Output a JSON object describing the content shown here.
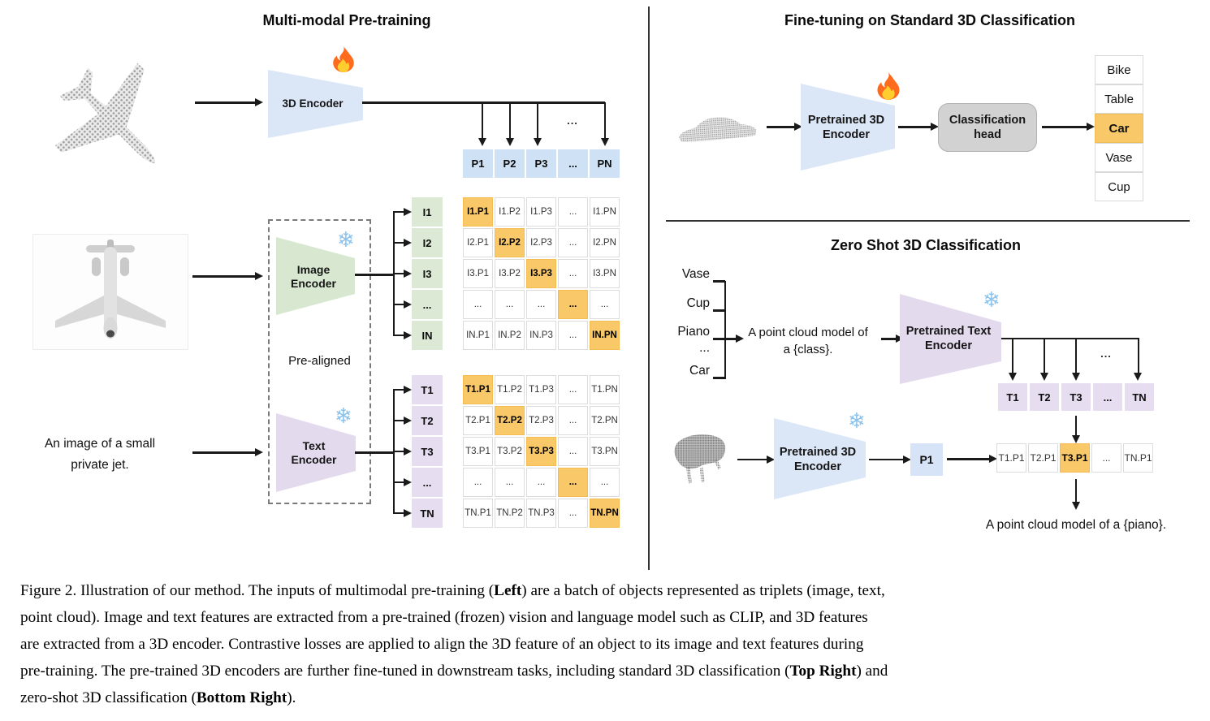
{
  "left_panel": {
    "title": "Multi-modal Pre-training",
    "encoder_3d_label": "3D Encoder",
    "image_encoder": {
      "line1": "Image",
      "line2": "Encoder"
    },
    "text_encoder": {
      "line1": "Text",
      "line2": "Encoder"
    },
    "pre_aligned_label": "Pre-aligned",
    "image_caption_input": {
      "line1": "An image of a small",
      "line2": "private jet."
    },
    "p_fan_ellipsis": "...",
    "p_row": [
      "P1",
      "P2",
      "P3",
      "...",
      "PN"
    ],
    "i_column": [
      "I1",
      "I2",
      "I3",
      "...",
      "IN"
    ],
    "t_column": [
      "T1",
      "T2",
      "T3",
      "...",
      "TN"
    ],
    "i_matrix": [
      [
        "I1.P1",
        "I1.P2",
        "I1.P3",
        "...",
        "I1.PN"
      ],
      [
        "I2.P1",
        "I2.P2",
        "I2.P3",
        "...",
        "I2.PN"
      ],
      [
        "I3.P1",
        "I3.P2",
        "I3.P3",
        "...",
        "I3.PN"
      ],
      [
        "...",
        "...",
        "...",
        "...",
        "..."
      ],
      [
        "IN.P1",
        "IN.P2",
        "IN.P3",
        "...",
        "IN.PN"
      ]
    ],
    "t_matrix": [
      [
        "T1.P1",
        "T1.P2",
        "T1.P3",
        "...",
        "T1.PN"
      ],
      [
        "T2.P1",
        "T2.P2",
        "T2.P3",
        "...",
        "T2.PN"
      ],
      [
        "T3.P1",
        "T3.P2",
        "T3.P3",
        "...",
        "T3.PN"
      ],
      [
        "...",
        "...",
        "...",
        "...",
        "..."
      ],
      [
        "TN.P1",
        "TN.P2",
        "TN.P3",
        "...",
        "TN.PN"
      ]
    ]
  },
  "top_right_panel": {
    "title": "Fine-tuning on Standard 3D Classification",
    "encoder": {
      "line1": "Pretrained 3D",
      "line2": "Encoder"
    },
    "classification_head": {
      "line1": "Classification",
      "line2": "head"
    },
    "classes": [
      {
        "label": "Bike"
      },
      {
        "label": "Table"
      },
      {
        "label": "Car",
        "highlight": true
      },
      {
        "label": "Vase"
      },
      {
        "label": "Cup"
      }
    ]
  },
  "bottom_right_panel": {
    "title": "Zero Shot 3D Classification",
    "prompt_classes": [
      "Vase",
      "Cup",
      "Piano",
      "...",
      "Car"
    ],
    "prompt": {
      "line1": "A point cloud model of",
      "line2": "a {class}."
    },
    "text_encoder": {
      "line1": "Pretrained Text",
      "line2": "Encoder"
    },
    "fan_ellipsis": "...",
    "t_row": [
      "T1",
      "T2",
      "T3",
      "...",
      "TN"
    ],
    "encoder_3d": {
      "line1": "Pretrained 3D",
      "line2": "Encoder"
    },
    "p1_label": "P1",
    "similarity_row": [
      {
        "label": "T1.P1"
      },
      {
        "label": "T2.P1"
      },
      {
        "label": "T3.P1",
        "highlight": true
      },
      {
        "label": "..."
      },
      {
        "label": "TN.P1"
      }
    ],
    "output_text": "A point cloud model of a {piano}."
  },
  "caption": {
    "label": "Figure 2.",
    "lines": [
      [
        {
          "t": "Figure 2. Illustration of our method. The inputs of multimodal pre-training ("
        },
        {
          "t": "Left",
          "b": true
        },
        {
          "t": ") are a batch of objects represented as triplets (image, text,"
        }
      ],
      [
        {
          "t": "point cloud). Image and text features are extracted from a pre-trained (frozen) vision and language model such as CLIP, and 3D features"
        }
      ],
      [
        {
          "t": "are extracted from a 3D encoder. Contrastive losses are applied to align the 3D feature of an object to its image and text features during"
        }
      ],
      [
        {
          "t": "pre-training. The pre-trained 3D encoders are further fine-tuned in downstream tasks, including standard 3D classification ("
        },
        {
          "t": "Top Right",
          "b": true
        },
        {
          "t": ") and"
        }
      ],
      [
        {
          "t": "zero-shot 3D classification ("
        },
        {
          "t": "Bottom Right",
          "b": true
        },
        {
          "t": ")."
        }
      ]
    ]
  },
  "icons": {
    "trainable": {
      "name": "fire-icon",
      "meaning": "trainable module"
    },
    "frozen": {
      "name": "snowflake-icon",
      "glyph": "❄",
      "meaning": "frozen module"
    }
  },
  "colors": {
    "highlight_orange": "#f9c869",
    "point_feature_blue": "#cfe1f4",
    "encoder_blue": "#dbe6f7",
    "image_green": "#dcead5",
    "text_purple": "#e6def0",
    "head_gray": "#d2d2d2"
  }
}
